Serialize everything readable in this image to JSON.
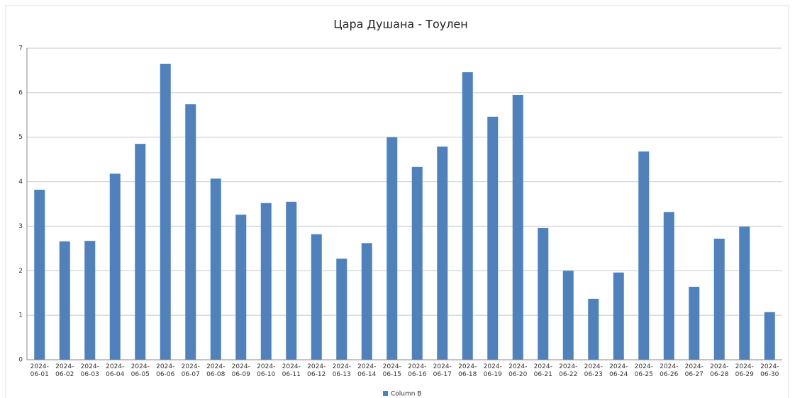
{
  "chart_data": {
    "type": "bar",
    "title": "Цара Душана - Тоулен",
    "categories": [
      "2024-06-01",
      "2024-06-02",
      "2024-06-03",
      "2024-06-04",
      "2024-06-05",
      "2024-06-06",
      "2024-06-07",
      "2024-06-08",
      "2024-06-09",
      "2024-06-10",
      "2024-06-11",
      "2024-06-12",
      "2024-06-13",
      "2024-06-14",
      "2024-06-15",
      "2024-06-16",
      "2024-06-17",
      "2024-06-18",
      "2024-06-19",
      "2024-06-20",
      "2024-06-21",
      "2024-06-22",
      "2024-06-23",
      "2024-06-24",
      "2024-06-25",
      "2024-06-26",
      "2024-06-27",
      "2024-06-28",
      "2024-06-29",
      "2024-06-30"
    ],
    "series": [
      {
        "name": "Column B",
        "color": "#4f81bd",
        "values": [
          3.82,
          2.66,
          2.67,
          4.18,
          4.85,
          6.65,
          5.74,
          4.07,
          3.26,
          3.52,
          3.55,
          2.82,
          2.27,
          2.62,
          5.0,
          4.33,
          4.79,
          6.46,
          5.46,
          5.95,
          2.96,
          2.0,
          1.37,
          1.96,
          4.68,
          3.32,
          1.64,
          2.72,
          2.99,
          1.07
        ]
      }
    ],
    "ylim": [
      0,
      7
    ],
    "yticks": [
      0,
      1,
      2,
      3,
      4,
      5,
      6,
      7
    ],
    "grid": true,
    "legend": "bottom"
  }
}
